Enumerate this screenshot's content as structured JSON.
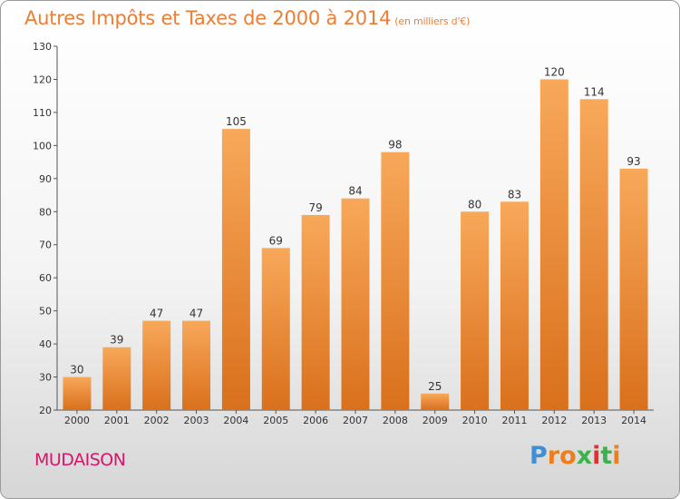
{
  "chart_data": {
    "type": "bar",
    "title": "Autres Impôts et Taxes de 2000 à 2014",
    "subtitle": "(en milliers d'€)",
    "categories": [
      "2000",
      "2001",
      "2002",
      "2003",
      "2004",
      "2005",
      "2006",
      "2007",
      "2008",
      "2009",
      "2010",
      "2011",
      "2012",
      "2013",
      "2014"
    ],
    "values": [
      30,
      39,
      47,
      47,
      105,
      69,
      79,
      84,
      98,
      25,
      80,
      83,
      120,
      114,
      93
    ],
    "ylim": [
      20,
      130
    ],
    "yticks": [
      20,
      30,
      40,
      50,
      60,
      70,
      80,
      90,
      100,
      110,
      120,
      130
    ],
    "grid": false,
    "colors": {
      "bar_light": "#f8a85a",
      "bar_dark": "#d9701c",
      "title": "#ee7d32"
    }
  },
  "footer": {
    "commune": "MUDAISON",
    "logo_letters": [
      "P",
      "r",
      "o",
      "x",
      "i",
      "t",
      "i"
    ],
    "logo_colors": [
      "#3e8fd6",
      "#ef7d1a",
      "#ef7d1a",
      "#3cb34a",
      "#e62e2e",
      "#3cb34a",
      "#ef7d1a"
    ],
    "commune_color": "#d8156b"
  }
}
